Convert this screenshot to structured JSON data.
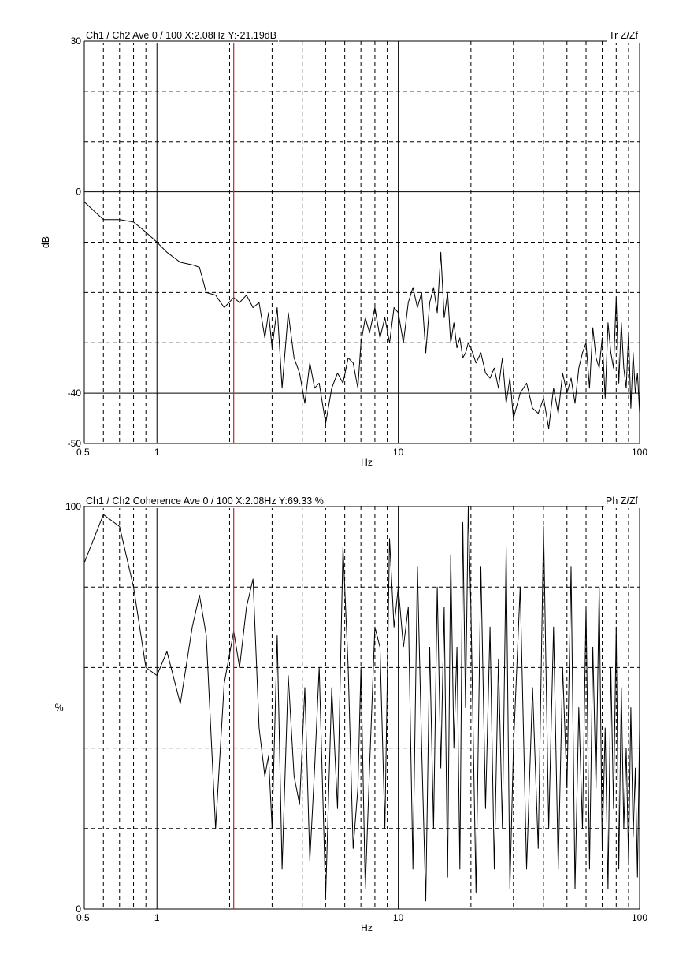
{
  "colors": {
    "trace": "#000000",
    "cursor": "#cc2222",
    "grid": "#000000",
    "background": "#ffffff"
  },
  "chart_data": [
    {
      "type": "line",
      "header": "Ch1 / Ch2  Ave 0 / 100  X:2.08Hz  Y:-21.19dB",
      "tag": "Tr Z/Zf",
      "xlabel": "Hz",
      "ylabel": "dB",
      "xscale": "log",
      "xlim": [
        0.5,
        100
      ],
      "ylim": [
        -50,
        30
      ],
      "x_ticks": [
        {
          "value": 0.5,
          "label": "0.5"
        },
        {
          "value": 1,
          "label": "1"
        },
        {
          "value": 10,
          "label": "10"
        },
        {
          "value": 100,
          "label": "100"
        }
      ],
      "y_ticks": [
        {
          "value": 30,
          "label": "30"
        },
        {
          "value": 0,
          "label": "0"
        },
        {
          "value": -40,
          "label": "-40"
        },
        {
          "value": -50,
          "label": "-50"
        }
      ],
      "y_grid_solid": [
        0,
        -40
      ],
      "y_grid_dashed": [
        20,
        10,
        -10,
        -20,
        -30
      ],
      "cursor_x": 2.08,
      "series": [
        {
          "x": [
            0.5,
            0.6,
            0.7,
            0.8,
            0.9,
            1.0,
            1.1,
            1.25,
            1.4,
            1.5,
            1.6,
            1.75,
            1.9,
            2.08,
            2.2,
            2.35,
            2.5,
            2.65,
            2.8,
            2.9,
            3.0,
            3.15,
            3.3,
            3.5,
            3.7,
            3.9,
            4.1,
            4.3,
            4.5,
            4.7,
            5.0,
            5.3,
            5.6,
            5.9,
            6.2,
            6.5,
            6.8,
            7.0,
            7.3,
            7.6,
            8.0,
            8.4,
            8.8,
            9.2,
            9.6,
            10.0,
            10.5,
            11.0,
            11.5,
            12.0,
            12.5,
            13.0,
            13.5,
            14.0,
            14.5,
            15.0,
            15.5,
            16.0,
            16.5,
            17.0,
            17.5,
            18.0,
            18.5,
            19.0,
            19.5,
            20.0,
            21,
            22,
            23,
            24,
            25,
            26,
            27,
            28,
            29,
            30,
            32,
            34,
            36,
            38,
            40,
            42,
            44,
            46,
            48,
            50,
            52,
            54,
            56,
            58,
            60,
            62,
            64,
            66,
            68,
            70,
            72,
            74,
            76,
            78,
            80,
            82,
            84,
            86,
            88,
            90,
            92,
            94,
            96,
            98,
            100
          ],
          "y": [
            -2,
            -5.5,
            -5.5,
            -6,
            -8,
            -10,
            -12,
            -14,
            -14.5,
            -15,
            -20,
            -20.5,
            -23,
            -21,
            -22,
            -20.5,
            -23,
            -22,
            -29,
            -24,
            -31,
            -23,
            -39,
            -24,
            -33,
            -36,
            -42,
            -34,
            -39,
            -38,
            -46,
            -39,
            -36,
            -38,
            -33,
            -34,
            -39,
            -30,
            -25,
            -28,
            -23,
            -29,
            -25,
            -30,
            -23,
            -24,
            -30,
            -22,
            -19,
            -23,
            -20,
            -32,
            -22,
            -19,
            -24,
            -12,
            -25,
            -20,
            -30,
            -26,
            -31,
            -29,
            -33,
            -32,
            -30,
            -31,
            -34,
            -32,
            -36,
            -37,
            -35,
            -39,
            -33,
            -42,
            -37,
            -45,
            -40,
            -38,
            -43,
            -44,
            -41,
            -47,
            -39,
            -44,
            -36,
            -40,
            -37,
            -42,
            -35,
            -32,
            -30,
            -39,
            -27,
            -33,
            -35,
            -29,
            -41,
            -26,
            -32,
            -35,
            -21,
            -38,
            -26,
            -35,
            -39,
            -28,
            -43,
            -32,
            -40,
            -36,
            -44
          ]
        }
      ]
    },
    {
      "type": "line",
      "header": "Ch1 / Ch2  Coherence Ave 0 / 100  X:2.08Hz  Y:69.33 %",
      "tag": "Ph Z/Zf",
      "xlabel": "Hz",
      "ylabel": "%",
      "xscale": "log",
      "xlim": [
        0.5,
        100
      ],
      "ylim": [
        0,
        100
      ],
      "x_ticks": [
        {
          "value": 0.5,
          "label": "0.5"
        },
        {
          "value": 1,
          "label": "1"
        },
        {
          "value": 10,
          "label": "10"
        },
        {
          "value": 100,
          "label": "100"
        }
      ],
      "y_ticks": [
        {
          "value": 100,
          "label": "100"
        },
        {
          "value": 0,
          "label": "0"
        }
      ],
      "y_grid_solid": [],
      "y_grid_dashed": [
        80,
        60,
        40,
        20
      ],
      "cursor_x": 2.08,
      "series": [
        {
          "x": [
            0.5,
            0.6,
            0.7,
            0.8,
            0.9,
            1.0,
            1.1,
            1.25,
            1.4,
            1.5,
            1.6,
            1.75,
            1.9,
            2.08,
            2.2,
            2.35,
            2.5,
            2.65,
            2.8,
            2.9,
            3.0,
            3.15,
            3.3,
            3.5,
            3.7,
            3.9,
            4.1,
            4.3,
            4.5,
            4.7,
            5.0,
            5.3,
            5.6,
            5.9,
            6.2,
            6.5,
            6.8,
            7.0,
            7.3,
            7.6,
            8.0,
            8.4,
            8.8,
            9.2,
            9.6,
            10.0,
            10.5,
            11.0,
            11.5,
            12.0,
            12.5,
            13.0,
            13.5,
            14.0,
            14.5,
            15.0,
            15.5,
            16.0,
            16.5,
            17.0,
            17.5,
            18.0,
            18.5,
            19.0,
            19.5,
            20.0,
            21,
            22,
            23,
            24,
            25,
            26,
            27,
            28,
            29,
            30,
            32,
            34,
            36,
            38,
            40,
            42,
            44,
            46,
            48,
            50,
            52,
            54,
            56,
            58,
            60,
            62,
            64,
            66,
            68,
            70,
            72,
            74,
            76,
            78,
            80,
            82,
            84,
            86,
            88,
            90,
            92,
            94,
            96,
            98,
            100
          ],
          "y": [
            86,
            98,
            95,
            80,
            60,
            58,
            64,
            51,
            70,
            78,
            68,
            20,
            56,
            69,
            60,
            75,
            82,
            45,
            33,
            38,
            20,
            68,
            10,
            58,
            33,
            26,
            55,
            12,
            35,
            60,
            3,
            55,
            25,
            90,
            60,
            15,
            30,
            60,
            5,
            35,
            70,
            65,
            20,
            92,
            70,
            80,
            65,
            75,
            10,
            85,
            40,
            2,
            65,
            20,
            80,
            35,
            75,
            8,
            88,
            40,
            65,
            10,
            96,
            50,
            100,
            75,
            4,
            85,
            25,
            70,
            10,
            62,
            20,
            90,
            5,
            40,
            80,
            10,
            55,
            15,
            95,
            20,
            70,
            10,
            60,
            30,
            85,
            5,
            50,
            20,
            75,
            10,
            65,
            30,
            80,
            15,
            45,
            5,
            60,
            25,
            70,
            10,
            55,
            20,
            40,
            12,
            50,
            18,
            35,
            8,
            45
          ]
        }
      ]
    }
  ]
}
